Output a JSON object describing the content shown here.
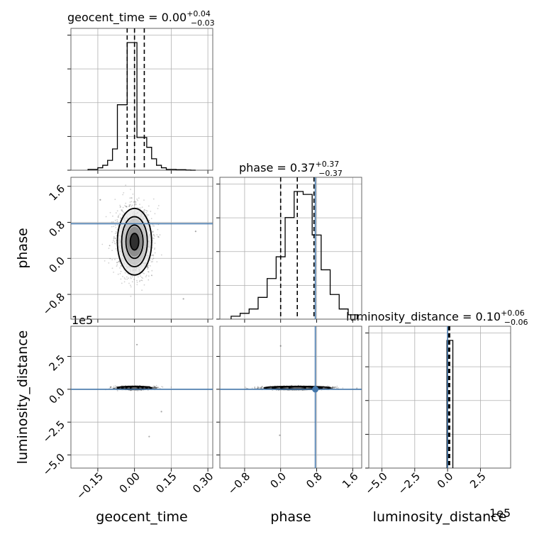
{
  "chart_data": {
    "type": "corner",
    "parameters": [
      "geocent_time",
      "phase",
      "luminosity_distance"
    ],
    "titles": [
      {
        "param": "geocent_time",
        "label": "geocent_time = 0.00",
        "upper": "+0.04",
        "lower": "−0.03"
      },
      {
        "param": "phase",
        "label": "phase = 0.37",
        "upper": "+0.37",
        "lower": "−0.37"
      },
      {
        "param": "luminosity_distance",
        "label": "luminosity_distance = 0.10",
        "upper": "+0.06",
        "lower": "−0.06"
      }
    ],
    "axis_labels": {
      "x": [
        "geocent_time",
        "phase",
        "luminosity_distance"
      ],
      "y": [
        "phase",
        "luminosity_distance"
      ]
    },
    "offset_labels": {
      "y_row3": "1e5",
      "x_col3": "1e5"
    },
    "ticks": {
      "geocent_time": {
        "values": [
          -0.15,
          0.0,
          0.15,
          0.3
        ],
        "labels": [
          "−0.15",
          "0.00",
          "0.15",
          "0.30"
        ]
      },
      "phase": {
        "values": [
          -0.8,
          0.0,
          0.8,
          1.6
        ],
        "labels": [
          "−0.8",
          "0.0",
          "0.8",
          "1.6"
        ]
      },
      "luminosity_distance": {
        "values": [
          -5.0,
          -2.5,
          0.0,
          2.5
        ],
        "labels": [
          "−5.0",
          "−2.5",
          "0.0",
          "2.5"
        ]
      }
    },
    "ranges": {
      "geocent_time": [
        -0.26,
        0.32
      ],
      "phase": [
        -1.35,
        1.8
      ],
      "luminosity_distance": [
        -6.0,
        4.8
      ]
    },
    "truth": {
      "geocent_time": null,
      "phase": 0.77,
      "luminosity_distance": 0.0
    },
    "histograms": [
      {
        "param": "geocent_time",
        "bins": [
          -0.19,
          -0.17,
          -0.15,
          -0.13,
          -0.11,
          -0.09,
          -0.07,
          -0.05,
          -0.03,
          -0.01,
          0.01,
          0.03,
          0.05,
          0.07,
          0.09,
          0.11,
          0.13,
          0.15,
          0.17,
          0.19,
          0.21,
          0.23,
          0.25
        ],
        "counts": [
          0.005,
          0.005,
          0.015,
          0.03,
          0.06,
          0.13,
          0.4,
          0.4,
          0.78,
          0.78,
          0.2,
          0.2,
          0.14,
          0.07,
          0.03,
          0.015,
          0.005,
          0.005,
          0.003,
          0.003,
          0.001,
          0
        ],
        "quantiles": [
          -0.03,
          0.0,
          0.04
        ]
      },
      {
        "param": "phase",
        "bins": [
          -1.1,
          -0.9,
          -0.7,
          -0.5,
          -0.3,
          -0.1,
          0.1,
          0.3,
          0.5,
          0.7,
          0.9,
          1.1,
          1.3,
          1.5,
          1.7
        ],
        "counts": [
          0.02,
          0.04,
          0.07,
          0.15,
          0.28,
          0.43,
          0.7,
          0.88,
          0.86,
          0.58,
          0.34,
          0.17,
          0.07,
          0.03
        ],
        "quantiles": [
          0.0,
          0.37,
          0.74
        ]
      },
      {
        "param": "luminosity_distance",
        "bins": [
          -0.05,
          0.05,
          0.4
        ],
        "counts": [
          1.0,
          1.0
        ],
        "quantiles": [
          0.04,
          0.1,
          0.16
        ]
      }
    ],
    "scatter_2d": [
      {
        "x": "geocent_time",
        "y": "phase",
        "center": [
          0.0,
          0.37
        ],
        "spread": [
          0.035,
          0.37
        ],
        "outliers": [
          [
            0.2,
            -0.9
          ],
          [
            0.25,
            0.6
          ],
          [
            -0.14,
            1.3
          ]
        ]
      },
      {
        "x": "geocent_time",
        "y": "luminosity_distance",
        "center": [
          0.0,
          0.1
        ],
        "spread": [
          0.035,
          0.06
        ],
        "outliers": [
          [
            0.01,
            3.4
          ],
          [
            0.11,
            -1.7
          ],
          [
            0.06,
            -3.6
          ]
        ]
      },
      {
        "x": "phase",
        "y": "luminosity_distance",
        "center": [
          0.37,
          0.1
        ],
        "spread": [
          0.37,
          0.06
        ],
        "outliers": [
          [
            0.0,
            3.3
          ],
          [
            -0.02,
            -3.5
          ]
        ]
      }
    ]
  }
}
